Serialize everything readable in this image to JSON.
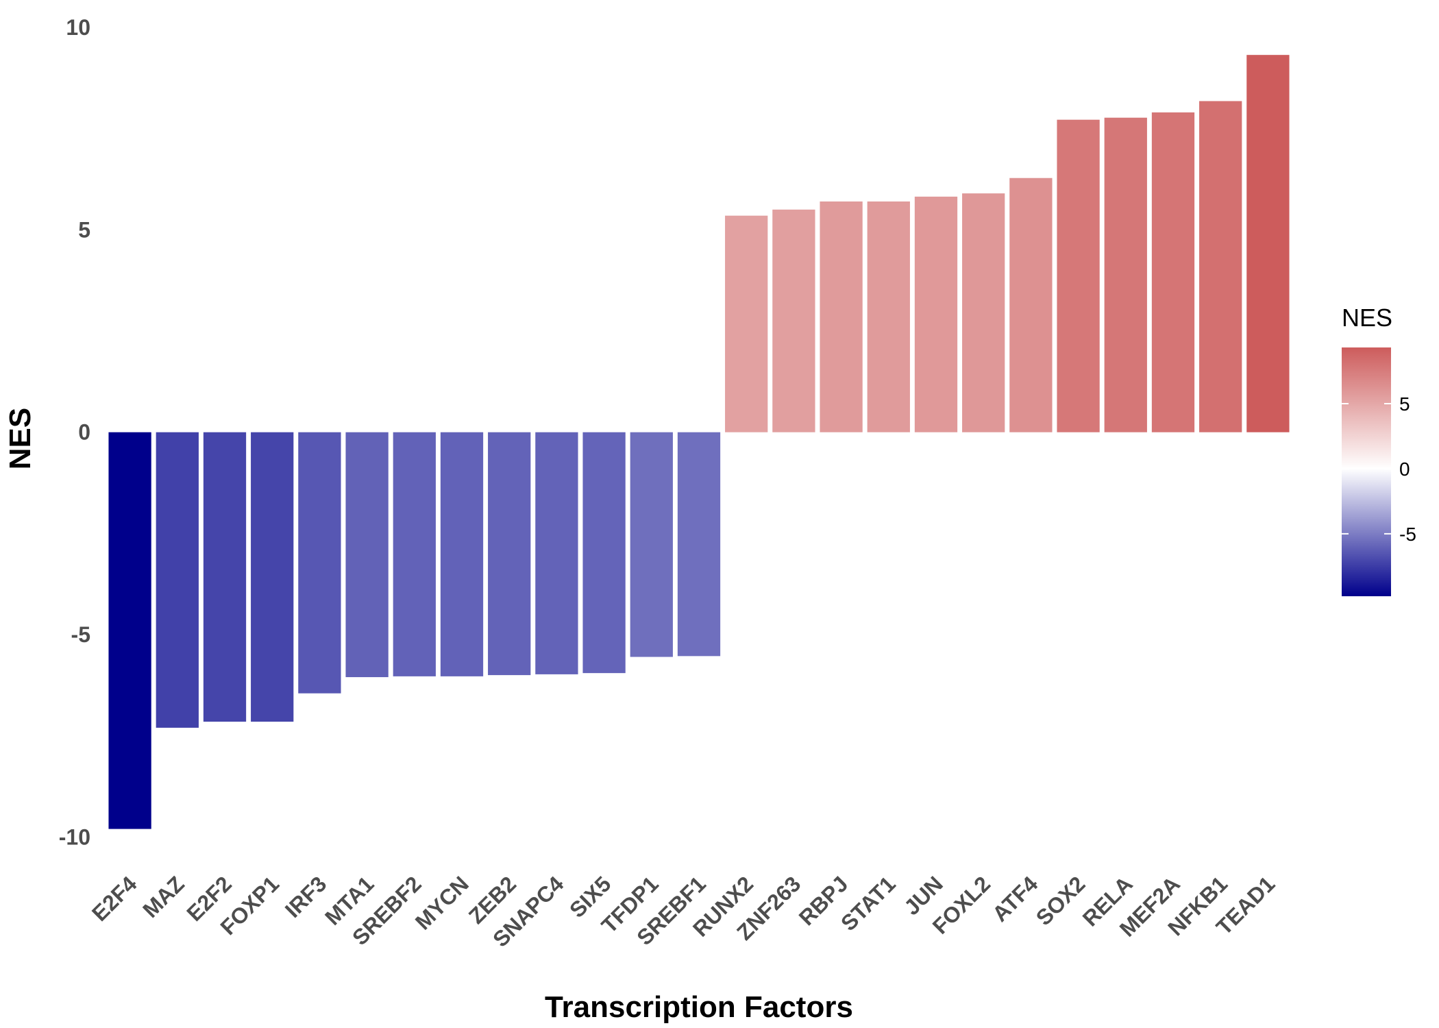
{
  "chart_data": {
    "type": "bar",
    "xlabel": "Transcription Factors",
    "ylabel": "NES",
    "ylim": [
      -10.4,
      10
    ],
    "yticks": [
      -10,
      -5,
      0,
      5,
      10
    ],
    "grid": false,
    "legend_position": "right",
    "categories": [
      "E2F4",
      "MAZ",
      "E2F2",
      "FOXP1",
      "IRF3",
      "MTA1",
      "SREBF2",
      "MYCN",
      "ZEB2",
      "SNAPC4",
      "SIX5",
      "TFDP1",
      "SREBF1",
      "RUNX2",
      "ZNF263",
      "RBPJ",
      "STAT1",
      "JUN",
      "FOXL2",
      "ATF4",
      "SOX2",
      "RELA",
      "MEF2A",
      "NFKB1",
      "TEAD1"
    ],
    "values": [
      -9.8,
      -7.3,
      -7.15,
      -7.15,
      -6.45,
      -6.05,
      -6.03,
      -6.03,
      -6.0,
      -5.98,
      -5.95,
      -5.55,
      -5.53,
      5.35,
      5.5,
      5.7,
      5.7,
      5.82,
      5.9,
      6.28,
      7.72,
      7.77,
      7.9,
      8.18,
      9.32
    ],
    "legend": {
      "title": "NES",
      "ticks": [
        5,
        0,
        -5
      ],
      "range": [
        -9.8,
        9.32
      ],
      "low_color": "#00008b",
      "mid_color": "#ffffff",
      "high_color": "#cd5c5c"
    }
  }
}
